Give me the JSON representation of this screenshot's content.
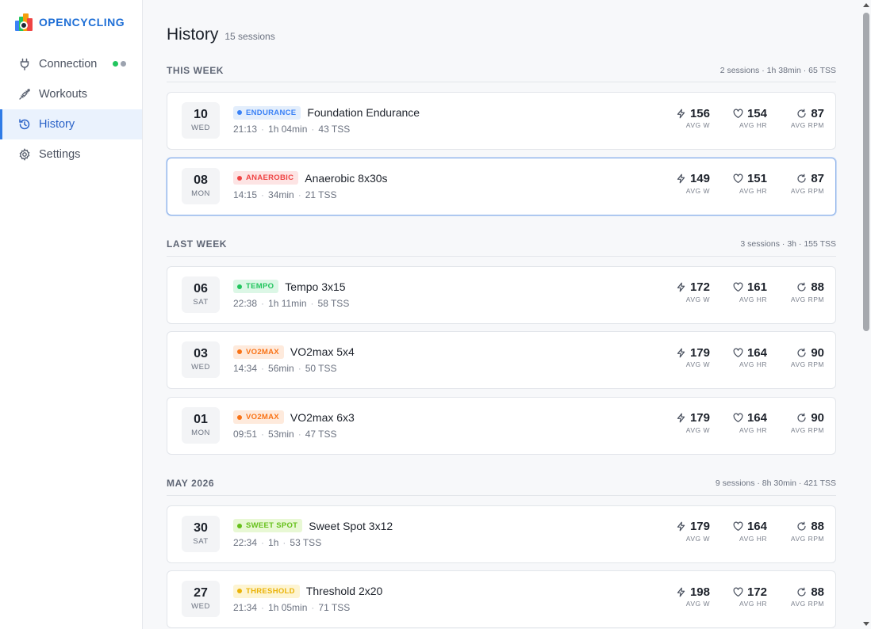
{
  "app": {
    "name": "OPENCYCLING"
  },
  "sidebar": {
    "items": [
      {
        "label": "Connection",
        "icon": "plug-icon"
      },
      {
        "label": "Workouts",
        "icon": "workouts-icon"
      },
      {
        "label": "History",
        "icon": "history-icon",
        "active": true
      },
      {
        "label": "Settings",
        "icon": "gear-icon"
      }
    ],
    "connection_status_colors": [
      "#22c55e",
      "#9ca3af"
    ]
  },
  "page": {
    "title": "History",
    "count": "15 sessions"
  },
  "metric_labels": {
    "power": "AVG W",
    "hr": "AVG HR",
    "cadence": "AVG RPM"
  },
  "groups": [
    {
      "title": "THIS WEEK",
      "summary": "2 sessions · 1h 38min · 65 TSS",
      "sessions": [
        {
          "day": "10",
          "weekday": "WED",
          "zone": "ENDURANCE",
          "name": "Foundation Endurance",
          "time": "21:13",
          "duration": "1h 04min",
          "tss": "43 TSS",
          "power": "156",
          "hr": "154",
          "cadence": "87"
        },
        {
          "day": "08",
          "weekday": "MON",
          "zone": "ANAEROBIC",
          "name": "Anaerobic 8x30s",
          "time": "14:15",
          "duration": "34min",
          "tss": "21 TSS",
          "power": "149",
          "hr": "151",
          "cadence": "87",
          "selected": true
        }
      ]
    },
    {
      "title": "LAST WEEK",
      "summary": "3 sessions · 3h · 155 TSS",
      "sessions": [
        {
          "day": "06",
          "weekday": "SAT",
          "zone": "TEMPO",
          "name": "Tempo 3x15",
          "time": "22:38",
          "duration": "1h 11min",
          "tss": "58 TSS",
          "power": "172",
          "hr": "161",
          "cadence": "88"
        },
        {
          "day": "03",
          "weekday": "WED",
          "zone": "VO2MAX",
          "name": "VO2max 5x4",
          "time": "14:34",
          "duration": "56min",
          "tss": "50 TSS",
          "power": "179",
          "hr": "164",
          "cadence": "90"
        },
        {
          "day": "01",
          "weekday": "MON",
          "zone": "VO2MAX",
          "name": "VO2max 6x3",
          "time": "09:51",
          "duration": "53min",
          "tss": "47 TSS",
          "power": "179",
          "hr": "164",
          "cadence": "90"
        }
      ]
    },
    {
      "title": "MAY 2026",
      "summary": "9 sessions · 8h 30min · 421 TSS",
      "sessions": [
        {
          "day": "30",
          "weekday": "SAT",
          "zone": "SWEET SPOT",
          "name": "Sweet Spot 3x12",
          "time": "22:34",
          "duration": "1h",
          "tss": "53 TSS",
          "power": "179",
          "hr": "164",
          "cadence": "88"
        },
        {
          "day": "27",
          "weekday": "WED",
          "zone": "THRESHOLD",
          "name": "Threshold 2x20",
          "time": "21:34",
          "duration": "1h 05min",
          "tss": "71 TSS",
          "power": "198",
          "hr": "172",
          "cadence": "88"
        }
      ]
    }
  ],
  "zone_colors": {
    "ENDURANCE": {
      "bg": "#e3eefc",
      "fg": "#3b82f6"
    },
    "ANAEROBIC": {
      "bg": "#fde4e4",
      "fg": "#ef4444"
    },
    "TEMPO": {
      "bg": "#dcf7e6",
      "fg": "#22c55e"
    },
    "VO2MAX": {
      "bg": "#feeadc",
      "fg": "#f97316"
    },
    "SWEET SPOT": {
      "bg": "#e8f8d4",
      "fg": "#65c01a"
    },
    "THRESHOLD": {
      "bg": "#fdf4d2",
      "fg": "#eab308"
    }
  }
}
